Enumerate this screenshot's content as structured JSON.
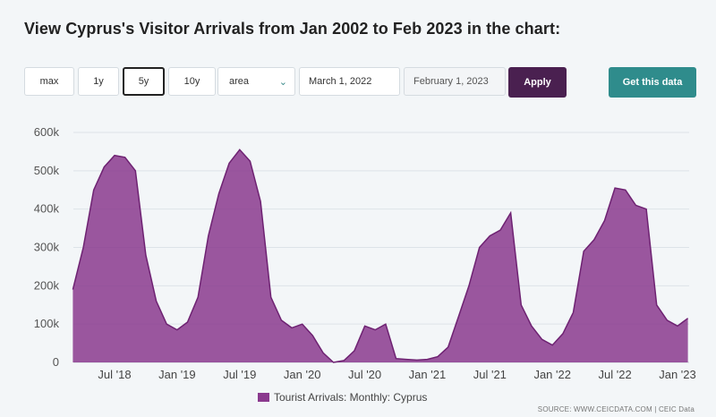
{
  "page": {
    "title": "View Cyprus's Visitor Arrivals from Jan 2002 to Feb 2023 in the chart:"
  },
  "controls": {
    "ranges": [
      "max",
      "1y",
      "5y",
      "10y"
    ],
    "active_range": "5y",
    "chart_type_select": "area",
    "start_date": "March 1, 2022",
    "end_date": "February 1, 2023",
    "apply_label": "Apply",
    "get_data_label": "Get this data"
  },
  "source": "SOURCE: WWW.CEICDATA.COM | CEIC Data",
  "colors": {
    "area_fill": "#8a3a8e",
    "apply_bg": "#4a2050",
    "get_data_bg": "#2f8c8c"
  },
  "chart_data": {
    "type": "area",
    "title": "",
    "xlabel": "",
    "ylabel": "",
    "ylim": [
      0,
      600000
    ],
    "yticks": [
      0,
      100000,
      200000,
      300000,
      400000,
      500000,
      600000
    ],
    "ytick_labels": [
      "0",
      "100k",
      "200k",
      "300k",
      "400k",
      "500k",
      "600k"
    ],
    "xtick_labels": [
      "Jul '18",
      "Jan '19",
      "Jul '19",
      "Jan '20",
      "Jul '20",
      "Jan '21",
      "Jul '21",
      "Jan '22",
      "Jul '22",
      "Jan '23"
    ],
    "grid": true,
    "legend_position": "bottom-center",
    "series": [
      {
        "name": "Tourist Arrivals: Monthly: Cyprus",
        "x": [
          "2018-03",
          "2018-04",
          "2018-05",
          "2018-06",
          "2018-07",
          "2018-08",
          "2018-09",
          "2018-10",
          "2018-11",
          "2018-12",
          "2019-01",
          "2019-02",
          "2019-03",
          "2019-04",
          "2019-05",
          "2019-06",
          "2019-07",
          "2019-08",
          "2019-09",
          "2019-10",
          "2019-11",
          "2019-12",
          "2020-01",
          "2020-02",
          "2020-03",
          "2020-04",
          "2020-05",
          "2020-06",
          "2020-07",
          "2020-08",
          "2020-09",
          "2020-10",
          "2020-11",
          "2020-12",
          "2021-01",
          "2021-02",
          "2021-03",
          "2021-04",
          "2021-05",
          "2021-06",
          "2021-07",
          "2021-08",
          "2021-09",
          "2021-10",
          "2021-11",
          "2021-12",
          "2022-01",
          "2022-02",
          "2022-03",
          "2022-04",
          "2022-05",
          "2022-06",
          "2022-07",
          "2022-08",
          "2022-09",
          "2022-10",
          "2022-11",
          "2022-12",
          "2023-01",
          "2023-02"
        ],
        "values": [
          190000,
          300000,
          450000,
          510000,
          540000,
          535000,
          500000,
          280000,
          160000,
          100000,
          85000,
          105000,
          170000,
          330000,
          440000,
          520000,
          555000,
          525000,
          420000,
          170000,
          110000,
          90000,
          100000,
          70000,
          25000,
          0,
          5000,
          30000,
          95000,
          85000,
          100000,
          10000,
          8000,
          6000,
          8000,
          15000,
          40000,
          120000,
          200000,
          300000,
          330000,
          345000,
          390000,
          150000,
          95000,
          60000,
          45000,
          75000,
          130000,
          290000,
          320000,
          370000,
          455000,
          450000,
          410000,
          400000,
          150000,
          110000,
          95000,
          115000
        ]
      }
    ]
  }
}
